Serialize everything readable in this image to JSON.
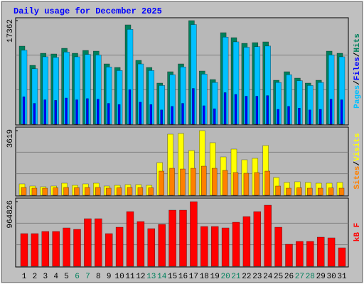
{
  "chart_data": [
    {
      "type": "bar",
      "title": "Daily usage for December 2025",
      "ylim": [
        0,
        17362
      ],
      "yticks": [
        17362
      ],
      "grid_values": [
        5787,
        11575
      ],
      "legend_separator": "/",
      "series": [
        {
          "name": "Hits",
          "color": "#00805c",
          "values": [
            13081,
            9870,
            11892,
            11773,
            12724,
            11892,
            12367,
            12248,
            10108,
            9513,
            16649,
            10703,
            9513,
            6897,
            8800,
            10108,
            17362,
            8919,
            7492,
            15340,
            14508,
            13557,
            13676,
            13795,
            7373,
            8800,
            7730,
            6897,
            7373,
            12248,
            11892
          ]
        },
        {
          "name": "Files",
          "color": "#0000ff",
          "values": [
            4600,
            3500,
            4100,
            4000,
            4400,
            4100,
            4300,
            4200,
            3500,
            3300,
            5800,
            3700,
            3300,
            2400,
            3000,
            3500,
            6000,
            3100,
            2600,
            5300,
            5000,
            4700,
            4700,
            4800,
            2500,
            3000,
            2700,
            2400,
            2500,
            4200,
            4100
          ]
        },
        {
          "name": "Pages",
          "color": "#00c0ff",
          "values": [
            12400,
            9300,
            11300,
            11200,
            12100,
            11300,
            11700,
            11600,
            9600,
            9000,
            15900,
            10100,
            9000,
            6500,
            8300,
            9600,
            16700,
            8400,
            7000,
            14600,
            13800,
            12900,
            13000,
            13100,
            7000,
            8300,
            7300,
            6500,
            7000,
            11600,
            11300
          ]
        }
      ]
    },
    {
      "type": "bar",
      "ylim": [
        0,
        3619
      ],
      "yticks": [
        3619
      ],
      "grid_values": [
        1206,
        2413
      ],
      "legend_separator": "/",
      "series": [
        {
          "name": "Visits",
          "color": "#ffff00",
          "values": [
            636,
            517,
            477,
            517,
            676,
            557,
            636,
            676,
            517,
            557,
            597,
            597,
            557,
            1829,
            3420,
            3460,
            2505,
            3619,
            2943,
            2147,
            2585,
            1988,
            2068,
            2784,
            994,
            716,
            756,
            716,
            676,
            676,
            716
          ]
        },
        {
          "name": "Sites",
          "color": "#ff8000",
          "values": [
            437,
            400,
            398,
            420,
            437,
            430,
            437,
            440,
            400,
            420,
            437,
            430,
            420,
            1352,
            1511,
            1471,
            1511,
            1630,
            1511,
            1392,
            1273,
            1233,
            1273,
            1352,
            517,
            398,
            420,
            398,
            398,
            410,
            398
          ]
        }
      ]
    },
    {
      "type": "bar",
      "ylim": [
        0,
        964826
      ],
      "yticks": [
        964826
      ],
      "grid_values": [
        321609,
        643217
      ],
      "categories": [
        "1",
        "2",
        "3",
        "4",
        "5",
        "6",
        "7",
        "8",
        "9",
        "10",
        "11",
        "12",
        "13",
        "14",
        "15",
        "16",
        "17",
        "18",
        "19",
        "20",
        "21",
        "22",
        "23",
        "24",
        "25",
        "26",
        "27",
        "28",
        "29",
        "30",
        "31"
      ],
      "category_colors": [
        "#000000",
        "#000000",
        "#000000",
        "#000000",
        "#000000",
        "#00805c",
        "#00805c",
        "#000000",
        "#000000",
        "#000000",
        "#000000",
        "#000000",
        "#00805c",
        "#00805c",
        "#000000",
        "#000000",
        "#000000",
        "#000000",
        "#000000",
        "#00805c",
        "#00805c",
        "#000000",
        "#000000",
        "#000000",
        "#000000",
        "#000000",
        "#00805c",
        "#00805c",
        "#000000",
        "#000000",
        "#000000"
      ],
      "series": [
        {
          "name": "kB F",
          "color": "#ff0000",
          "values": [
            487716,
            487716,
            519525,
            519525,
            572537,
            551331,
            710369,
            710369,
            487716,
            583139,
            816394,
            667961,
            561934,
            625544,
            837600,
            837600,
            964826,
            593740,
            593740,
            572537,
            657358,
            742175,
            816394,
            911815,
            583139,
            328679,
            371088,
            371088,
            434705,
            424101,
            275666
          ]
        }
      ]
    }
  ]
}
